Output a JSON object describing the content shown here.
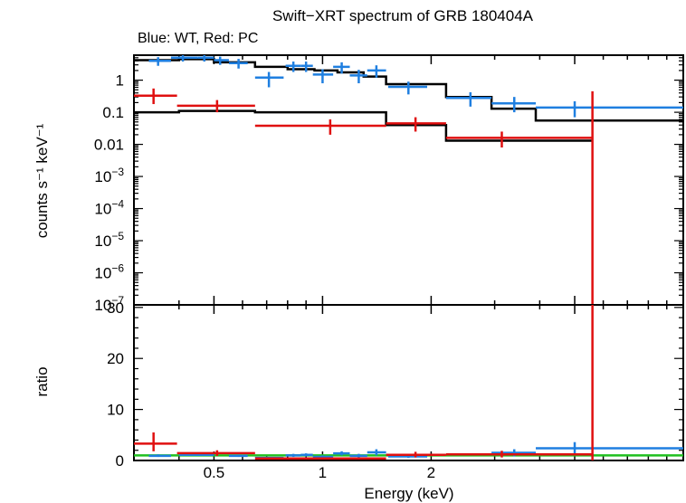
{
  "chart_data": [
    {
      "type": "scatter",
      "panel": "spectrum",
      "title": "Swift−XRT spectrum of GRB 180404A",
      "subtitle": "Blue: WT, Red: PC",
      "ylabel": "counts s⁻¹ keV⁻¹",
      "xscale": "log",
      "yscale": "log",
      "xlim": [
        0.3,
        10
      ],
      "ylim": [
        1e-07,
        6
      ],
      "ytick_labels": [
        {
          "value": 1,
          "base": "1",
          "exp": ""
        },
        {
          "value": 0.1,
          "base": "0.1",
          "exp": ""
        },
        {
          "value": 0.01,
          "base": "0.01",
          "exp": ""
        },
        {
          "value": 0.001,
          "base": "10",
          "exp": "−3"
        },
        {
          "value": 0.0001,
          "base": "10",
          "exp": "−4"
        },
        {
          "value": 1e-05,
          "base": "10",
          "exp": "−5"
        },
        {
          "value": 1e-06,
          "base": "10",
          "exp": "−6"
        },
        {
          "value": 1e-07,
          "base": "10",
          "exp": "−7"
        }
      ],
      "series": [
        {
          "color": "#1f7fe0",
          "points": [
            {
              "x": 0.35,
              "xlo": 0.33,
              "xhi": 0.38,
              "y": 4.0,
              "ylo": 2.8,
              "yhi": 5.2
            },
            {
              "x": 0.41,
              "xlo": 0.38,
              "xhi": 0.45,
              "y": 5.0,
              "ylo": 3.8,
              "yhi": 6.0
            },
            {
              "x": 0.47,
              "xlo": 0.45,
              "xhi": 0.5,
              "y": 5.0,
              "ylo": 3.8,
              "yhi": 6.0
            },
            {
              "x": 0.52,
              "xlo": 0.5,
              "xhi": 0.55,
              "y": 4.2,
              "ylo": 3.0,
              "yhi": 5.4
            },
            {
              "x": 0.585,
              "xlo": 0.55,
              "xhi": 0.62,
              "y": 3.4,
              "ylo": 2.3,
              "yhi": 4.6
            },
            {
              "x": 0.71,
              "xlo": 0.65,
              "xhi": 0.78,
              "y": 1.2,
              "ylo": 0.6,
              "yhi": 1.8
            },
            {
              "x": 0.83,
              "xlo": 0.79,
              "xhi": 0.87,
              "y": 2.8,
              "ylo": 1.8,
              "yhi": 3.8
            },
            {
              "x": 0.9,
              "xlo": 0.87,
              "xhi": 0.94,
              "y": 2.8,
              "ylo": 1.8,
              "yhi": 3.8
            },
            {
              "x": 1.0,
              "xlo": 0.94,
              "xhi": 1.07,
              "y": 1.5,
              "ylo": 0.8,
              "yhi": 2.2
            },
            {
              "x": 1.13,
              "xlo": 1.07,
              "xhi": 1.19,
              "y": 2.6,
              "ylo": 1.6,
              "yhi": 3.6
            },
            {
              "x": 1.26,
              "xlo": 1.19,
              "xhi": 1.33,
              "y": 1.4,
              "ylo": 0.8,
              "yhi": 2.1
            },
            {
              "x": 1.41,
              "xlo": 1.33,
              "xhi": 1.5,
              "y": 2.0,
              "ylo": 1.2,
              "yhi": 2.9
            },
            {
              "x": 1.73,
              "xlo": 1.52,
              "xhi": 1.95,
              "y": 0.62,
              "ylo": 0.36,
              "yhi": 0.9
            },
            {
              "x": 2.57,
              "xlo": 2.2,
              "xhi": 2.94,
              "y": 0.28,
              "ylo": 0.15,
              "yhi": 0.42
            },
            {
              "x": 3.4,
              "xlo": 2.94,
              "xhi": 3.9,
              "y": 0.19,
              "ylo": 0.1,
              "yhi": 0.3
            },
            {
              "x": 5.0,
              "xlo": 3.9,
              "xhi": 10.0,
              "y": 0.14,
              "ylo": 0.07,
              "yhi": 0.22
            }
          ]
        },
        {
          "color": "#e01010",
          "points": [
            {
              "x": 0.34,
              "xlo": 0.3,
              "xhi": 0.395,
              "y": 0.33,
              "ylo": 0.18,
              "yhi": 0.55
            },
            {
              "x": 0.51,
              "xlo": 0.395,
              "xhi": 0.65,
              "y": 0.16,
              "ylo": 0.1,
              "yhi": 0.24
            },
            {
              "x": 1.05,
              "xlo": 0.65,
              "xhi": 1.5,
              "y": 0.038,
              "ylo": 0.02,
              "yhi": 0.06
            },
            {
              "x": 1.81,
              "xlo": 1.5,
              "xhi": 2.2,
              "y": 0.045,
              "ylo": 0.025,
              "yhi": 0.07
            },
            {
              "x": 3.14,
              "xlo": 2.2,
              "xhi": 5.6,
              "y": 0.016,
              "ylo": 0.008,
              "yhi": 0.025
            },
            {
              "x": 5.6,
              "xlo": 5.6,
              "xhi": 5.6,
              "y": 1e-06,
              "ylo": 1e-07,
              "yhi": 0.45
            }
          ]
        }
      ],
      "models": [
        {
          "color": "#000000",
          "steps": [
            {
              "x0": 0.3,
              "x1": 0.4,
              "y": 4.2
            },
            {
              "x0": 0.4,
              "x1": 0.5,
              "y": 4.5
            },
            {
              "x0": 0.5,
              "x1": 0.65,
              "y": 3.6
            },
            {
              "x0": 0.65,
              "x1": 0.8,
              "y": 2.6
            },
            {
              "x0": 0.8,
              "x1": 0.95,
              "y": 2.2
            },
            {
              "x0": 0.95,
              "x1": 1.1,
              "y": 2.0
            },
            {
              "x0": 1.1,
              "x1": 1.3,
              "y": 1.75
            },
            {
              "x0": 1.3,
              "x1": 1.5,
              "y": 1.3
            },
            {
              "x0": 1.5,
              "x1": 1.95,
              "y": 0.75
            },
            {
              "x0": 1.95,
              "x1": 2.2,
              "y": 0.75
            },
            {
              "x0": 2.2,
              "x1": 2.94,
              "y": 0.3
            },
            {
              "x0": 2.94,
              "x1": 3.9,
              "y": 0.13
            },
            {
              "x0": 3.9,
              "x1": 10.0,
              "y": 0.055
            }
          ]
        },
        {
          "color": "#000000",
          "steps": [
            {
              "x0": 0.3,
              "x1": 0.4,
              "y": 0.1
            },
            {
              "x0": 0.4,
              "x1": 0.65,
              "y": 0.11
            },
            {
              "x0": 0.65,
              "x1": 1.5,
              "y": 0.1
            },
            {
              "x0": 1.5,
              "x1": 2.2,
              "y": 0.04
            },
            {
              "x0": 2.2,
              "x1": 5.6,
              "y": 0.013
            }
          ]
        }
      ]
    },
    {
      "type": "scatter",
      "panel": "ratio",
      "xlabel": "Energy (keV)",
      "ylabel": "ratio",
      "xscale": "log",
      "xlim": [
        0.3,
        10
      ],
      "ylim": [
        0,
        30.5
      ],
      "yticks": [
        0,
        10,
        20,
        30
      ],
      "xtick_labels": [
        {
          "value": 0.5,
          "label": "0.5"
        },
        {
          "value": 1,
          "label": "1"
        },
        {
          "value": 2,
          "label": "2"
        }
      ],
      "reference_line": {
        "y": 1,
        "color": "#20c020"
      },
      "series": [
        {
          "color": "#1f7fe0",
          "points": [
            {
              "x": 0.35,
              "xlo": 0.33,
              "xhi": 0.38,
              "y": 0.9,
              "ylo": 0.7,
              "yhi": 1.2
            },
            {
              "x": 0.45,
              "xlo": 0.4,
              "xhi": 0.5,
              "y": 1.1,
              "ylo": 0.9,
              "yhi": 1.3
            },
            {
              "x": 0.585,
              "xlo": 0.55,
              "xhi": 0.62,
              "y": 0.9,
              "ylo": 0.7,
              "yhi": 1.1
            },
            {
              "x": 0.71,
              "xlo": 0.65,
              "xhi": 0.78,
              "y": 0.5,
              "ylo": 0.3,
              "yhi": 0.7
            },
            {
              "x": 0.83,
              "xlo": 0.79,
              "xhi": 0.87,
              "y": 1.0,
              "ylo": 0.7,
              "yhi": 1.3
            },
            {
              "x": 0.9,
              "xlo": 0.87,
              "xhi": 0.94,
              "y": 1.1,
              "ylo": 0.8,
              "yhi": 1.4
            },
            {
              "x": 1.0,
              "xlo": 0.94,
              "xhi": 1.07,
              "y": 0.7,
              "ylo": 0.4,
              "yhi": 1.0
            },
            {
              "x": 1.13,
              "xlo": 1.07,
              "xhi": 1.19,
              "y": 1.4,
              "ylo": 1.0,
              "yhi": 1.8
            },
            {
              "x": 1.26,
              "xlo": 1.19,
              "xhi": 1.33,
              "y": 0.9,
              "ylo": 0.5,
              "yhi": 1.3
            },
            {
              "x": 1.41,
              "xlo": 1.33,
              "xhi": 1.5,
              "y": 1.6,
              "ylo": 1.0,
              "yhi": 2.2
            },
            {
              "x": 1.73,
              "xlo": 1.52,
              "xhi": 1.95,
              "y": 0.8,
              "ylo": 0.5,
              "yhi": 1.1
            },
            {
              "x": 3.4,
              "xlo": 2.94,
              "xhi": 3.9,
              "y": 1.5,
              "ylo": 0.8,
              "yhi": 2.2
            },
            {
              "x": 5.0,
              "xlo": 3.9,
              "xhi": 10.0,
              "y": 2.4,
              "ylo": 1.2,
              "yhi": 3.6
            }
          ]
        },
        {
          "color": "#e01010",
          "points": [
            {
              "x": 0.34,
              "xlo": 0.3,
              "xhi": 0.395,
              "y": 3.3,
              "ylo": 1.8,
              "yhi": 5.5
            },
            {
              "x": 0.51,
              "xlo": 0.395,
              "xhi": 0.65,
              "y": 1.45,
              "ylo": 0.9,
              "yhi": 2.0
            },
            {
              "x": 1.05,
              "xlo": 0.65,
              "xhi": 1.5,
              "y": 0.4,
              "ylo": 0.2,
              "yhi": 0.6
            },
            {
              "x": 1.81,
              "xlo": 1.5,
              "xhi": 2.2,
              "y": 1.1,
              "ylo": 0.6,
              "yhi": 1.7
            },
            {
              "x": 3.14,
              "xlo": 2.2,
              "xhi": 5.6,
              "y": 1.2,
              "ylo": 0.6,
              "yhi": 1.9
            },
            {
              "x": 5.6,
              "xlo": 5.6,
              "xhi": 5.6,
              "y": 0.0,
              "ylo": 0.0,
              "yhi": 30.5
            }
          ]
        }
      ]
    }
  ]
}
